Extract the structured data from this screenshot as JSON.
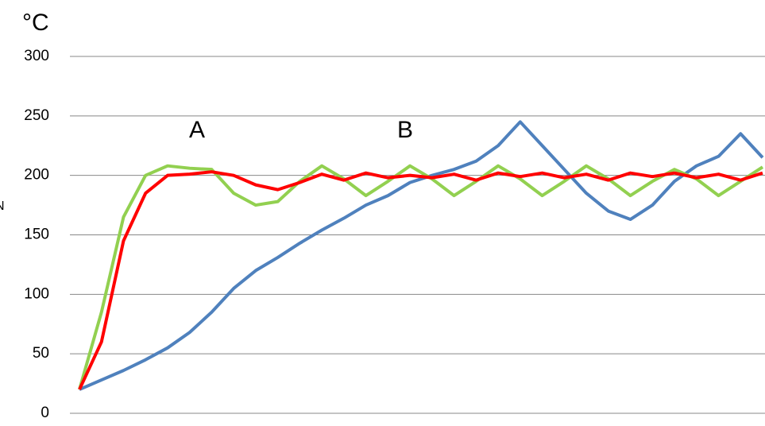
{
  "chart_data": {
    "type": "line",
    "y_unit": "°C",
    "annotations": [
      "A",
      "B",
      "N"
    ],
    "categories": [
      null,
      null,
      null,
      null,
      null,
      null,
      null,
      null,
      null,
      null,
      null,
      null,
      null,
      null,
      null,
      null,
      null,
      null,
      null,
      null,
      null,
      null,
      null,
      null,
      null,
      null,
      null,
      null,
      null,
      null,
      null,
      null
    ],
    "series": [
      {
        "color": "#4f81bd",
        "values": [
          20,
          28,
          36,
          45,
          55,
          68,
          85,
          105,
          120,
          131,
          143,
          154,
          164,
          175,
          183,
          194,
          200,
          205,
          212,
          225,
          245,
          225,
          205,
          185,
          170,
          163,
          175,
          195,
          208,
          216,
          235,
          215
        ]
      },
      {
        "color": "#92d050",
        "values": [
          20,
          85,
          165,
          200,
          208,
          206,
          205,
          185,
          175,
          178,
          195,
          208,
          197,
          183,
          195,
          208,
          197,
          183,
          195,
          208,
          197,
          183,
          195,
          208,
          197,
          183,
          195,
          205,
          197,
          183,
          195,
          207
        ]
      },
      {
        "color": "#ff0000",
        "values": [
          20,
          60,
          145,
          185,
          200,
          201,
          203,
          200,
          192,
          188,
          194,
          201,
          196,
          202,
          198,
          200,
          198,
          201,
          196,
          202,
          199,
          202,
          198,
          201,
          196,
          202,
          199,
          202,
          198,
          201,
          196,
          202
        ]
      }
    ],
    "ylim": [
      0,
      300
    ],
    "yticks": [
      0,
      50,
      100,
      150,
      200,
      250,
      300
    ],
    "grid": true
  }
}
